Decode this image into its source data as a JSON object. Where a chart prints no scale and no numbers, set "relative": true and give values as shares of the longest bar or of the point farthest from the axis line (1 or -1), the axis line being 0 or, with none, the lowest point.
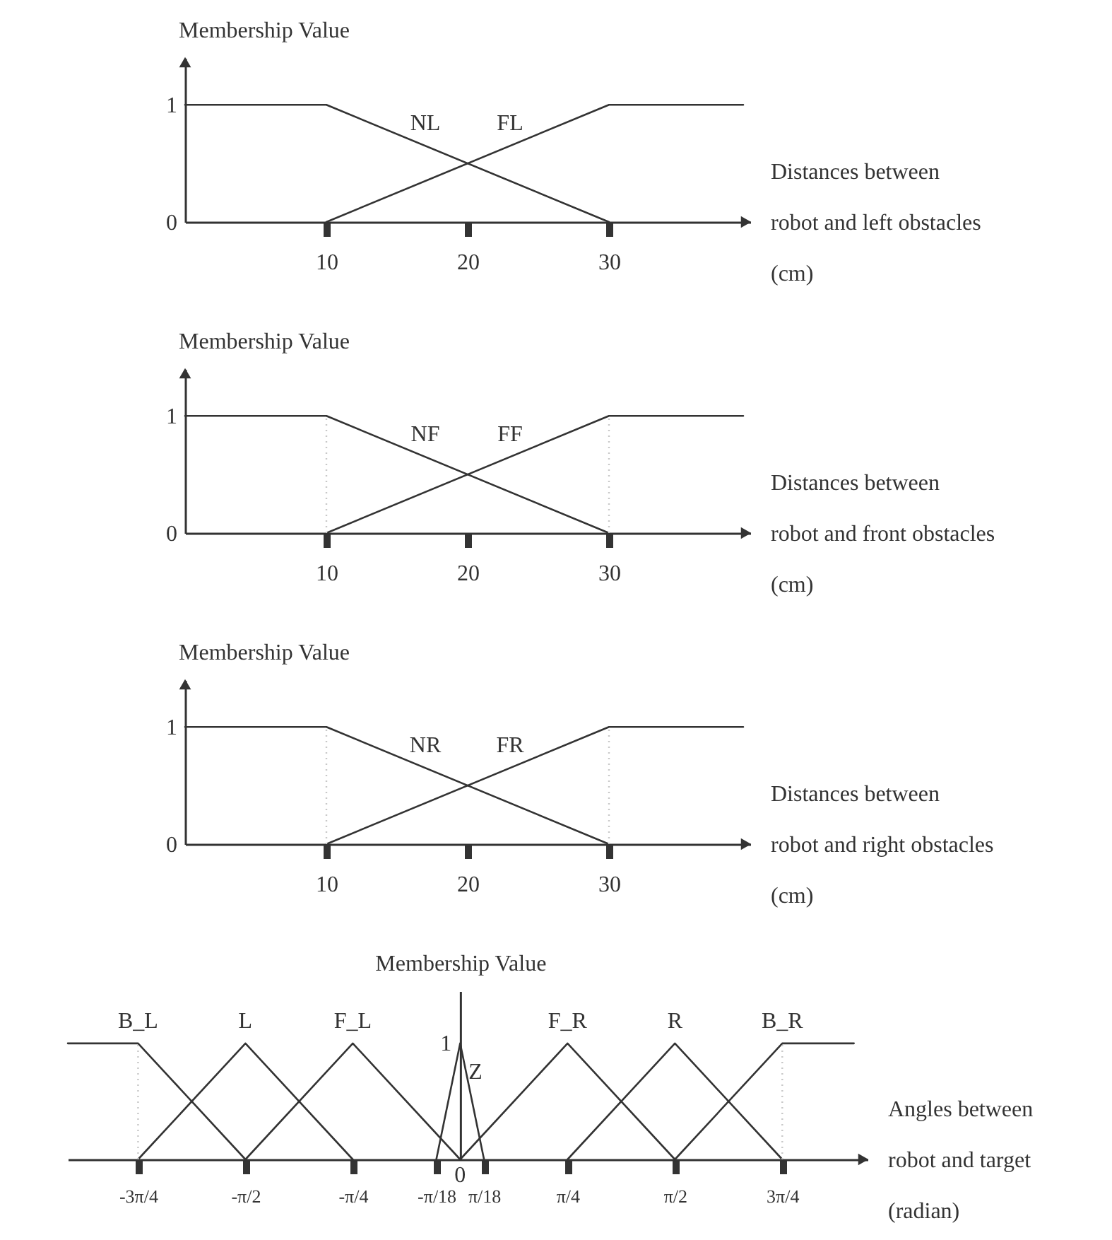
{
  "chart_data": [
    {
      "type": "line",
      "ylabel": "Membership Value",
      "xlabel": "Distances between\nrobot and left obstacles\n(cm)",
      "series": [
        {
          "name": "NL",
          "color": "#333333",
          "x": [
            0,
            10,
            30
          ],
          "values": [
            1,
            1,
            0
          ]
        },
        {
          "name": "FL",
          "color": "#333333",
          "x": [
            10,
            30,
            39.5
          ],
          "values": [
            0,
            1,
            1
          ]
        }
      ],
      "xlim": [
        0,
        40
      ],
      "ylim": [
        0,
        1.4
      ],
      "xticks": [
        10,
        20,
        30
      ],
      "yticks": [
        0,
        1
      ],
      "marker": "none",
      "line_style": "solid"
    },
    {
      "type": "line",
      "ylabel": "Membership Value",
      "xlabel": "Distances between\nrobot and front obstacles\n(cm)",
      "series": [
        {
          "name": "NF",
          "color": "#333333",
          "x": [
            0,
            10,
            30
          ],
          "values": [
            1,
            1,
            0
          ]
        },
        {
          "name": "FF",
          "color": "#333333",
          "x": [
            10,
            30,
            39.5
          ],
          "values": [
            0,
            1,
            1
          ]
        }
      ],
      "xlim": [
        0,
        40
      ],
      "ylim": [
        0,
        1.4
      ],
      "xticks": [
        10,
        20,
        30
      ],
      "yticks": [
        0,
        1
      ],
      "marker": "none",
      "line_style": "solid",
      "ref_lines": [
        {
          "axis": "x",
          "value": 10,
          "color": "#c8c8c8",
          "line_style": "dotted"
        },
        {
          "axis": "x",
          "value": 30,
          "color": "#c8c8c8",
          "line_style": "dotted"
        }
      ]
    },
    {
      "type": "line",
      "ylabel": "Membership Value",
      "xlabel": "Distances between\nrobot and right obstacles\n(cm)",
      "series": [
        {
          "name": "NR",
          "color": "#333333",
          "x": [
            0,
            10,
            30
          ],
          "values": [
            1,
            1,
            0
          ]
        },
        {
          "name": "FR",
          "color": "#333333",
          "x": [
            10,
            30,
            39.5
          ],
          "values": [
            0,
            1,
            1
          ]
        }
      ],
      "xlim": [
        0,
        40
      ],
      "ylim": [
        0,
        1.4
      ],
      "xticks": [
        10,
        20,
        30
      ],
      "yticks": [
        0,
        1
      ],
      "marker": "none",
      "line_style": "solid",
      "ref_lines": [
        {
          "axis": "x",
          "value": 10,
          "color": "#c8c8c8",
          "line_style": "dotted"
        },
        {
          "axis": "x",
          "value": 30,
          "color": "#c8c8c8",
          "line_style": "dotted"
        }
      ]
    },
    {
      "type": "line",
      "ylabel": "Membership Value",
      "xlabel": "Angles between\nrobot and target\n(radian)",
      "relative": true,
      "series": [
        {
          "name": "B_L",
          "color": "#333333",
          "x": [
            -2.87,
            -2.3562,
            -1.5708
          ],
          "values": [
            1,
            1,
            0
          ]
        },
        {
          "name": "L",
          "color": "#333333",
          "x": [
            -2.3562,
            -1.5708,
            -0.7854
          ],
          "values": [
            0,
            1,
            0
          ]
        },
        {
          "name": "F_L",
          "color": "#333333",
          "x": [
            -1.5708,
            -0.7854,
            0
          ],
          "values": [
            0,
            1,
            0
          ]
        },
        {
          "name": "Z",
          "color": "#333333",
          "x": [
            -0.1745,
            0,
            0.1745
          ],
          "values": [
            0,
            1,
            0
          ]
        },
        {
          "name": "F_R",
          "color": "#333333",
          "x": [
            0,
            0.7854,
            1.5708
          ],
          "values": [
            0,
            1,
            0
          ]
        },
        {
          "name": "R",
          "color": "#333333",
          "x": [
            0.7854,
            1.5708,
            2.3562
          ],
          "values": [
            0,
            1,
            0
          ]
        },
        {
          "name": "B_R",
          "color": "#333333",
          "x": [
            1.5708,
            2.3562,
            2.88
          ],
          "values": [
            0,
            1,
            1
          ]
        }
      ],
      "xlim": [
        -2.87,
        2.98
      ],
      "xticks": [
        {
          "value": -2.3562,
          "label": "-3π/4"
        },
        {
          "value": -1.5708,
          "label": "-π/2"
        },
        {
          "value": -0.7854,
          "label": "-π/4"
        },
        {
          "value": -0.1745,
          "label": "-π/18"
        },
        {
          "value": 0.1745,
          "label": "π/18"
        },
        {
          "value": 0.7854,
          "label": "π/4"
        },
        {
          "value": 1.5708,
          "label": "π/2"
        },
        {
          "value": 2.3562,
          "label": "3π/4"
        }
      ],
      "annotations": [
        {
          "text": "1",
          "x": 0,
          "y": 1
        },
        {
          "text": "0",
          "x": 0,
          "y": 0
        }
      ],
      "marker": "none",
      "line_style": "solid",
      "ref_lines": [
        {
          "axis": "x",
          "value": -2.3562,
          "color": "#c8c8c8",
          "line_style": "dotted"
        },
        {
          "axis": "x",
          "value": 2.3562,
          "color": "#c8c8c8",
          "line_style": "dotted"
        }
      ]
    }
  ]
}
